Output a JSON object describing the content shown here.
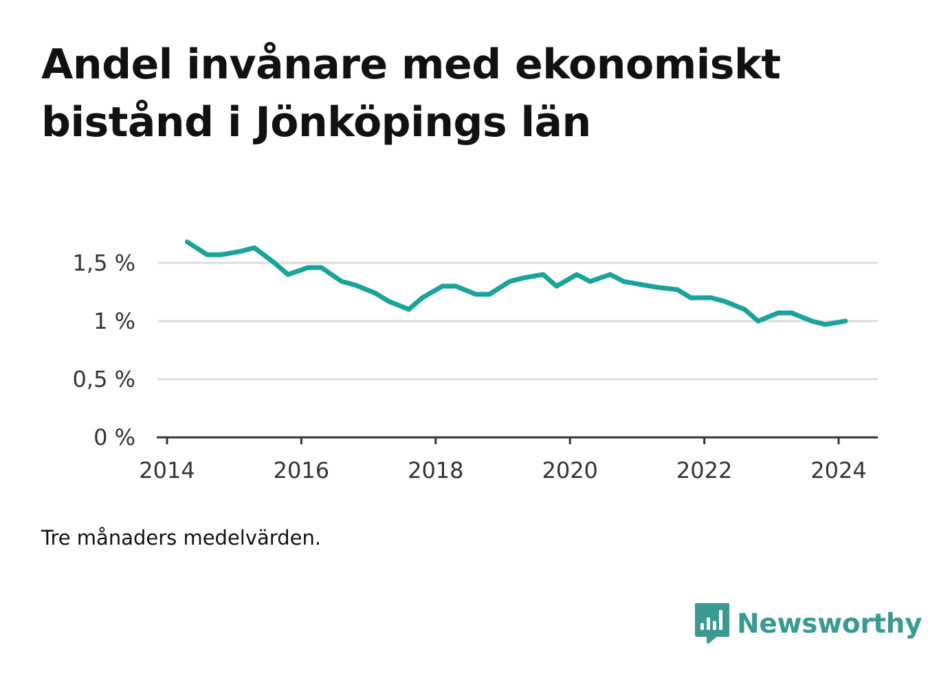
{
  "title_lines": [
    "Andel invånare med ekonomiskt",
    "bistånd i Jönköpings län"
  ],
  "note": "Tre månaders medelvärden.",
  "brand": {
    "name": "Newsworthy",
    "icon": "bar-chart-speech-bubble-icon",
    "color": "#3a9a92"
  },
  "colors": {
    "line": "#1aa39a",
    "grid": "#dddddd",
    "axis": "#333333"
  },
  "chart_data": {
    "type": "line",
    "title": "Andel invånare med ekonomiskt bistånd i Jönköpings län",
    "xlabel": "",
    "ylabel": "",
    "xlim": [
      2014,
      2024.6
    ],
    "ylim": [
      0,
      1.75
    ],
    "grid": "horizontal",
    "x_ticks": [
      2014,
      2016,
      2018,
      2020,
      2022,
      2024
    ],
    "x_tick_labels": [
      "2014",
      "2016",
      "2018",
      "2020",
      "2022",
      "2024"
    ],
    "y_ticks": [
      0,
      0.5,
      1,
      1.5
    ],
    "y_tick_labels": [
      "0 %",
      "0,5 %",
      "1 %",
      "1,5 %"
    ],
    "series": [
      {
        "x": [
          2014.3,
          2014.6,
          2014.8,
          2015.1,
          2015.3,
          2015.6,
          2015.8,
          2016.1,
          2016.3,
          2016.6,
          2016.8,
          2017.1,
          2017.3,
          2017.6,
          2017.8,
          2018.1,
          2018.3,
          2018.6,
          2018.8,
          2019.1,
          2019.3,
          2019.6,
          2019.8,
          2020.1,
          2020.3,
          2020.6,
          2020.8,
          2021.1,
          2021.3,
          2021.6,
          2021.8,
          2022.1,
          2022.3,
          2022.6,
          2022.8,
          2023.1,
          2023.3,
          2023.6,
          2023.8,
          2024.1
        ],
        "values": [
          1.68,
          1.57,
          1.57,
          1.6,
          1.63,
          1.5,
          1.4,
          1.46,
          1.46,
          1.34,
          1.31,
          1.24,
          1.17,
          1.1,
          1.2,
          1.3,
          1.3,
          1.23,
          1.23,
          1.34,
          1.37,
          1.4,
          1.3,
          1.4,
          1.34,
          1.4,
          1.34,
          1.31,
          1.29,
          1.27,
          1.2,
          1.2,
          1.17,
          1.1,
          1.0,
          1.07,
          1.07,
          1.0,
          0.97,
          1.0
        ]
      }
    ]
  }
}
